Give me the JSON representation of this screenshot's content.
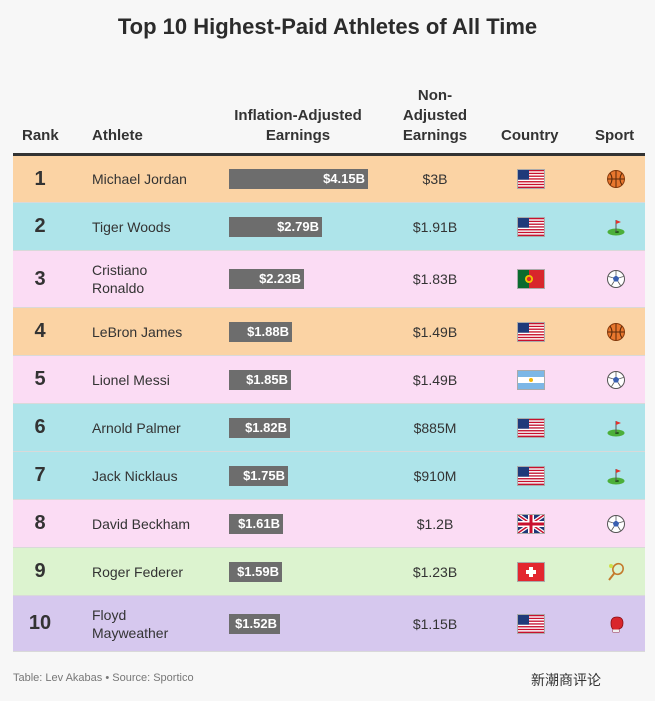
{
  "title": "Top 10 Highest-Paid Athletes of All Time",
  "headers": {
    "rank": "Rank",
    "athlete": "Athlete",
    "inflation": [
      "Inflation-Adjusted",
      "Earnings"
    ],
    "non_adjusted": [
      "Non-",
      "Adjusted",
      "Earnings"
    ],
    "country": "Country",
    "sport": "Sport"
  },
  "chart_data": {
    "type": "table",
    "columns": [
      "Rank",
      "Athlete",
      "Inflation-Adjusted Earnings",
      "Non-Adjusted Earnings",
      "Country",
      "Sport"
    ],
    "rows": [
      {
        "rank": "1",
        "name": [
          "Michael Jordan"
        ],
        "inflation_value": 4.15,
        "inflation_label": "$4.15B",
        "non_adjusted": "$3B",
        "country": "usa",
        "sport": "basketball",
        "color": "#fbd3a4"
      },
      {
        "rank": "2",
        "name": [
          "Tiger Woods"
        ],
        "inflation_value": 2.79,
        "inflation_label": "$2.79B",
        "non_adjusted": "$1.91B",
        "country": "usa",
        "sport": "golf",
        "color": "#aee4ea"
      },
      {
        "rank": "3",
        "name": [
          "Cristiano",
          "Ronaldo"
        ],
        "inflation_value": 2.23,
        "inflation_label": "$2.23B",
        "non_adjusted": "$1.83B",
        "country": "portugal",
        "sport": "soccer",
        "color": "#fbdcf4"
      },
      {
        "rank": "4",
        "name": [
          "LeBron James"
        ],
        "inflation_value": 1.88,
        "inflation_label": "$1.88B",
        "non_adjusted": "$1.49B",
        "country": "usa",
        "sport": "basketball",
        "color": "#fbd3a4"
      },
      {
        "rank": "5",
        "name": [
          "Lionel Messi"
        ],
        "inflation_value": 1.85,
        "inflation_label": "$1.85B",
        "non_adjusted": "$1.49B",
        "country": "argentina",
        "sport": "soccer",
        "color": "#fbdcf4"
      },
      {
        "rank": "6",
        "name": [
          "Arnold Palmer"
        ],
        "inflation_value": 1.82,
        "inflation_label": "$1.82B",
        "non_adjusted": "$885M",
        "country": "usa",
        "sport": "golf",
        "color": "#aee4ea"
      },
      {
        "rank": "7",
        "name": [
          "Jack Nicklaus"
        ],
        "inflation_value": 1.75,
        "inflation_label": "$1.75B",
        "non_adjusted": "$910M",
        "country": "usa",
        "sport": "golf",
        "color": "#aee4ea"
      },
      {
        "rank": "8",
        "name": [
          "David Beckham"
        ],
        "inflation_value": 1.61,
        "inflation_label": "$1.61B",
        "non_adjusted": "$1.2B",
        "country": "uk",
        "sport": "soccer",
        "color": "#fbdcf4"
      },
      {
        "rank": "9",
        "name": [
          "Roger Federer"
        ],
        "inflation_value": 1.59,
        "inflation_label": "$1.59B",
        "non_adjusted": "$1.23B",
        "country": "switzerland",
        "sport": "tennis",
        "color": "#dcf3cf"
      },
      {
        "rank": "10",
        "name": [
          "Floyd",
          "Mayweather"
        ],
        "inflation_value": 1.52,
        "inflation_label": "$1.52B",
        "non_adjusted": "$1.15B",
        "country": "usa",
        "sport": "boxing",
        "color": "#d6c8ee"
      }
    ]
  },
  "footer": "Table: Lev Akabas • Source: Sportico",
  "watermark": "新潮商评论"
}
